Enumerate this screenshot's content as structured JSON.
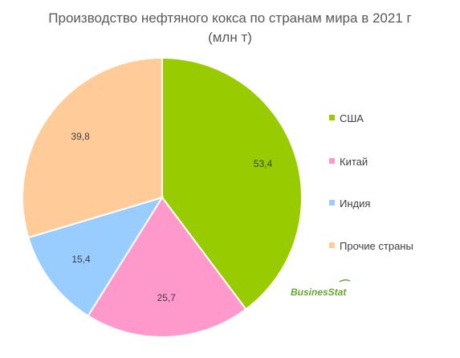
{
  "chart_data": {
    "type": "pie",
    "title": "Производство нефтяного кокса по странам мира в 2021 г",
    "subtitle": "(млн т)",
    "categories": [
      "США",
      "Китай",
      "Индия",
      "Прочие страны"
    ],
    "values": [
      53.4,
      25.7,
      15.4,
      39.8
    ],
    "value_labels": [
      "53,4",
      "25,7",
      "15,4",
      "39,8"
    ],
    "colors": [
      "#99cc00",
      "#ff99cc",
      "#99ccff",
      "#ffcc99"
    ],
    "legend": "right",
    "start_angle": "12 o'clock",
    "direction": "clockwise"
  },
  "watermark": {
    "text": "BusinesStat",
    "color": "#66a832"
  }
}
